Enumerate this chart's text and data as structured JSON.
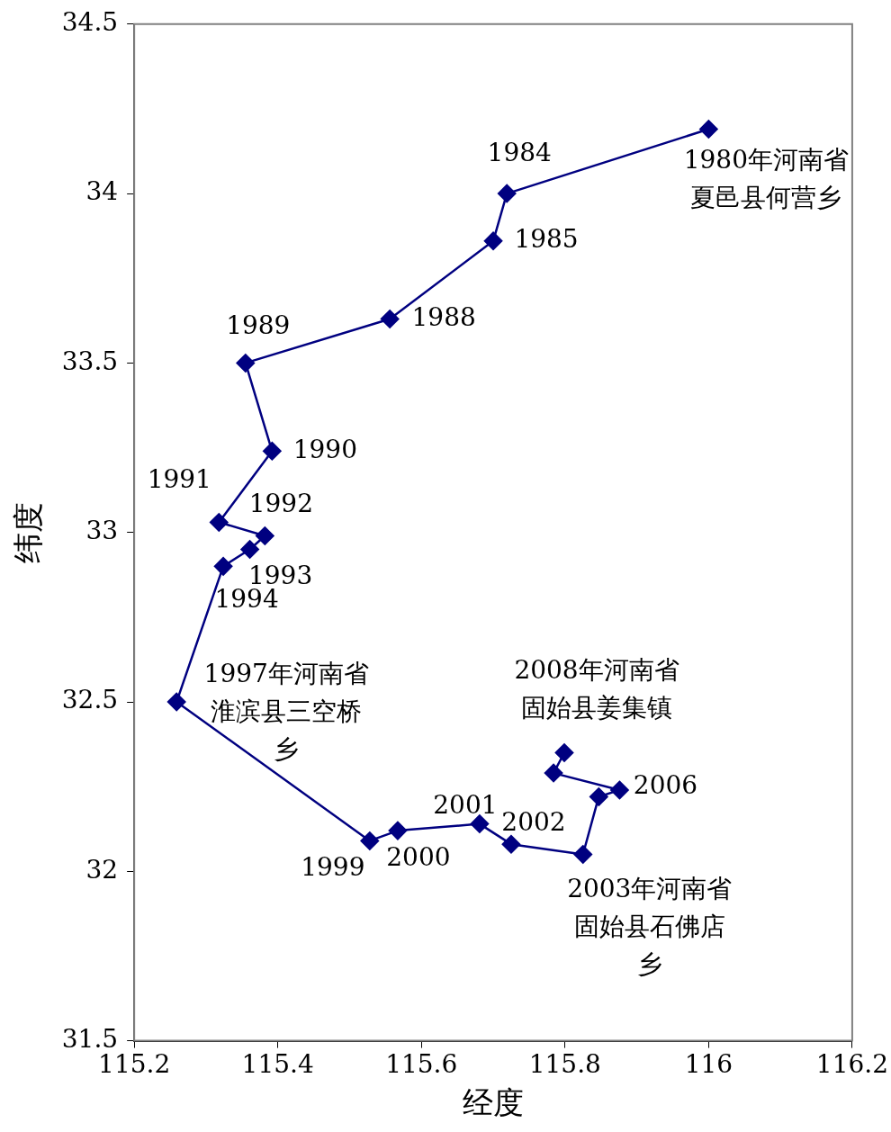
{
  "chart_data": {
    "type": "line",
    "xlabel": "经度",
    "ylabel": "纬度",
    "xlim": [
      115.2,
      116.2
    ],
    "xticks": [
      115.2,
      115.4,
      115.6,
      115.8,
      116,
      116.2
    ],
    "ylim": [
      31.5,
      34.5
    ],
    "yticks": [
      31.5,
      32,
      32.5,
      33,
      33.5,
      34,
      34.5
    ],
    "marker": "diamond",
    "legend": false,
    "series": [
      {
        "color": "#000080",
        "x": [
          116.0,
          115.719,
          115.7,
          115.556,
          115.355,
          115.392,
          115.318,
          115.382,
          115.361,
          115.324,
          115.259,
          115.528,
          115.567,
          115.681,
          115.725,
          115.825,
          115.847,
          115.876,
          115.784,
          115.799
        ],
        "values": [
          34.19,
          34.0,
          33.86,
          33.63,
          33.5,
          33.24,
          33.03,
          32.99,
          32.95,
          32.9,
          32.5,
          32.09,
          32.12,
          32.14,
          32.08,
          32.05,
          32.22,
          32.24,
          32.29,
          32.35
        ]
      }
    ],
    "annotations": [
      {
        "text": "1980年河南省夏邑县何营乡",
        "x": 116.0,
        "y": 34.19
      },
      {
        "text": "1984",
        "x": 115.719,
        "y": 34.0
      },
      {
        "text": "1985",
        "x": 115.7,
        "y": 33.86
      },
      {
        "text": "1988",
        "x": 115.556,
        "y": 33.63
      },
      {
        "text": "1989",
        "x": 115.355,
        "y": 33.5
      },
      {
        "text": "1990",
        "x": 115.392,
        "y": 33.24
      },
      {
        "text": "1991",
        "x": 115.318,
        "y": 33.03
      },
      {
        "text": "1992",
        "x": 115.382,
        "y": 32.99
      },
      {
        "text": "1993",
        "x": 115.361,
        "y": 32.95
      },
      {
        "text": "1994",
        "x": 115.324,
        "y": 32.9
      },
      {
        "text": "1997年河南省淮滨县三空桥乡",
        "x": 115.259,
        "y": 32.5
      },
      {
        "text": "1999",
        "x": 115.528,
        "y": 32.09
      },
      {
        "text": "2000",
        "x": 115.567,
        "y": 32.12
      },
      {
        "text": "2001",
        "x": 115.681,
        "y": 32.14
      },
      {
        "text": "2002",
        "x": 115.725,
        "y": 32.08
      },
      {
        "text": "2003年河南省固始县石佛店乡",
        "x": 115.825,
        "y": 32.05
      },
      {
        "text": "2006",
        "x": 115.876,
        "y": 32.24
      },
      {
        "text": "2008年河南省固始县姜集镇",
        "x": 115.799,
        "y": 32.35
      }
    ]
  }
}
